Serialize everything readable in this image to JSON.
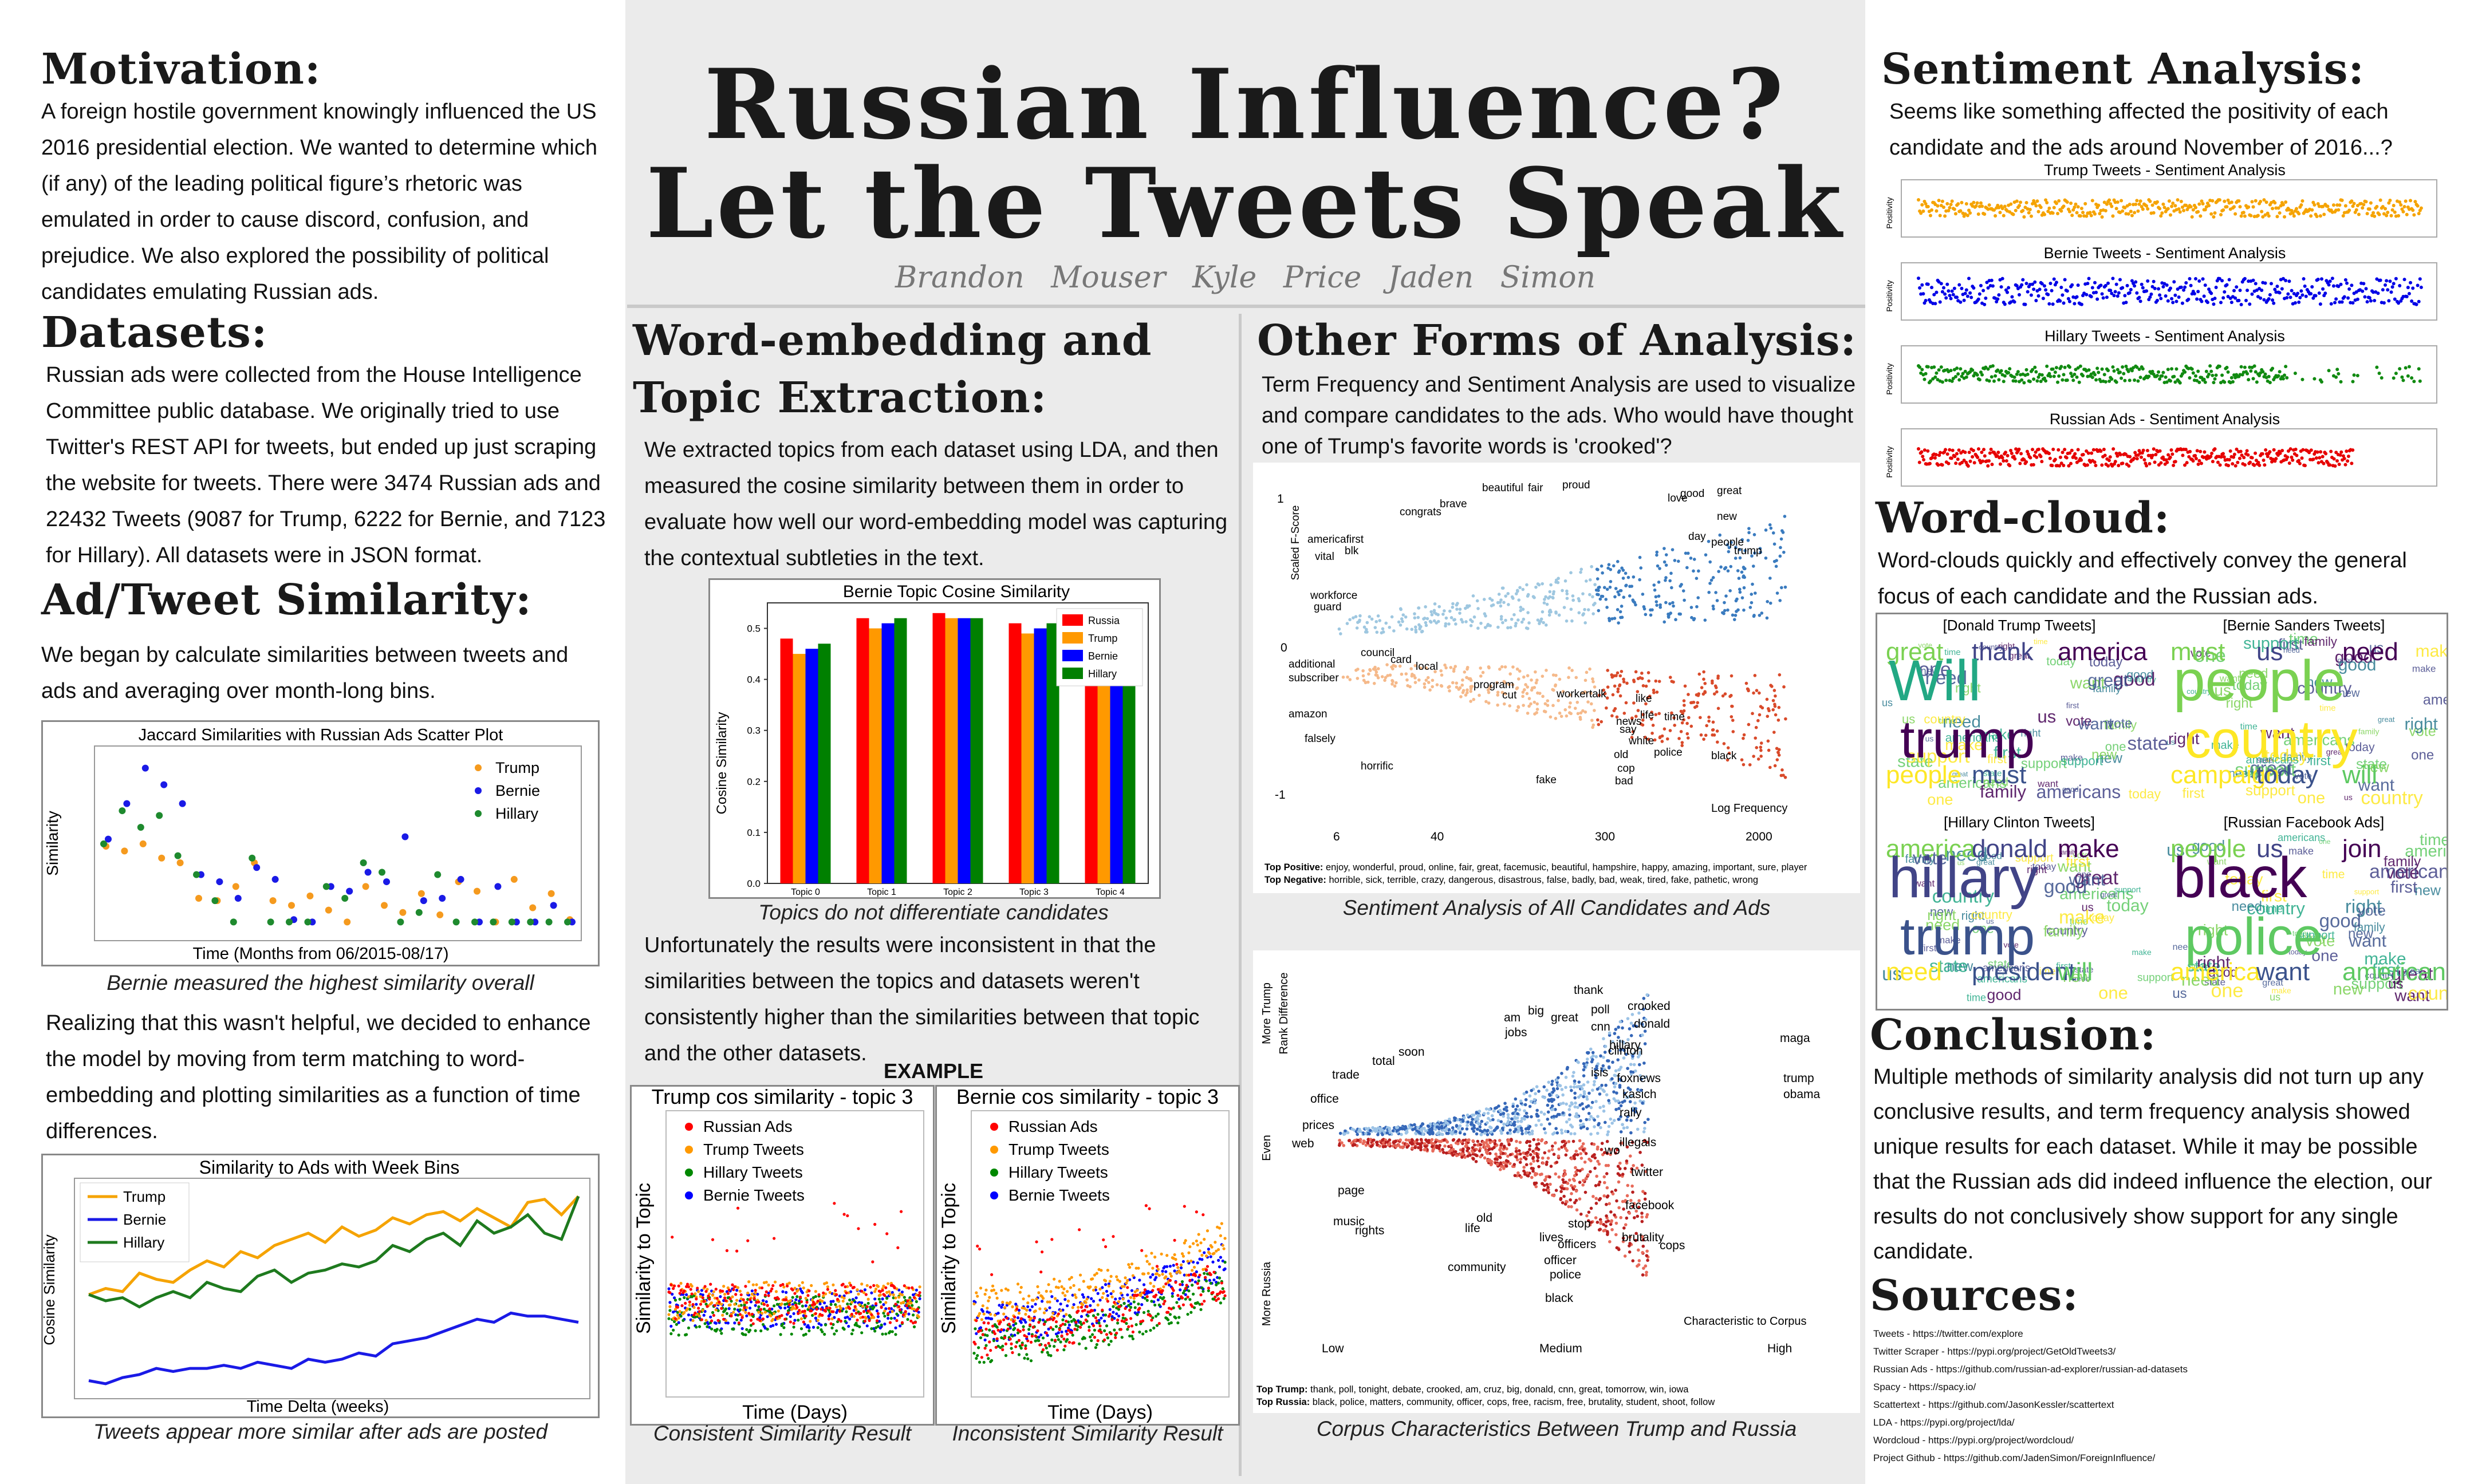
{
  "title_line1": "Russian Influence?",
  "title_line2": "Let the Tweets Speak",
  "authors": "Brandon Mouser Kyle Price Jaden Simon",
  "motivation": {
    "heading": "Motivation:",
    "text": "A foreign hostile government knowingly influenced the US 2016 presidential election. We wanted to determine which (if any) of the leading political figure’s rhetoric was emulated in order to cause discord, confusion, and prejudice. We also explored the possibility of political candidates emulating Russian ads."
  },
  "datasets": {
    "heading": "Datasets:",
    "text": "Russian ads were collected from the House Intelligence Committee public database. We originally tried to use Twitter's REST API for tweets, but ended up just scraping the website for tweets. There were 3474 Russian ads and 22432 Tweets (9087 for Trump, 6222 for Bernie, and 7123 for Hillary). All datasets were in JSON format."
  },
  "similarity": {
    "heading": "Ad/Tweet Similarity:",
    "text1": "We began by calculate similarities between tweets and ads and averaging over month-long bins.",
    "fig1_title": "Jaccard Similarities with Russian Ads Scatter Plot",
    "fig1_ylabel": "Similarity",
    "fig1_xlabel": "Time (Months from 06/2015-08/17)",
    "fig1_caption": "Bernie measured the highest similarity overall",
    "text2": "Realizing that this wasn't helpful, we decided to enhance the model by moving from term matching to word-embedding and plotting similarities as a function of time differences.",
    "fig2_title": "Similarity to Ads with Week Bins",
    "fig2_ylabel": "Cosine Similarity",
    "fig2_xlabel": "Time Delta (weeks)",
    "fig2_caption": "Tweets appear more similar after ads are posted"
  },
  "word_embedding": {
    "heading_line1": "Word-embedding and",
    "heading_line2": "Topic Extraction:",
    "text1": "We extracted topics from each dataset using LDA, and then measured the cosine similarity between them in order to evaluate how well our word-embedding model was capturing the contextual subtleties in the text.",
    "caption1": "Topics do not differentiate candidates",
    "text2": "Unfortunately the results were inconsistent in that the similarities between the topics and datasets weren't consistently higher than the similarities between that topic and the other datasets.",
    "example_label": "EXAMPLE",
    "left_title": "Trump cos similarity - topic 3",
    "right_title": "Bernie cos similarity - topic 3",
    "ylabel": "Similarity to Topic",
    "xlabel": "Time (Days)",
    "legend": [
      "Russian Ads",
      "Trump Tweets",
      "Hillary Tweets",
      "Bernie Tweets"
    ],
    "caption_left": "Consistent Similarity Result",
    "caption_right": "Inconsistent Similarity Result"
  },
  "other_analysis": {
    "heading": "Other Forms of Analysis:",
    "text": "Term Frequency and Sentiment Analysis are used to visualize and compare candidates to the ads. Who would have thought one of Trump's favorite words is 'crooked'?",
    "sent_ylabel": "Scaled F-Score",
    "sent_xlabel": "Log Frequency",
    "sent_yticks": [
      "1",
      "0",
      "-1"
    ],
    "sent_xticks": [
      "6",
      "40",
      "300",
      "2000"
    ],
    "sent_words_pos": [
      "beautiful",
      "fair",
      "proud",
      "great",
      "good",
      "love",
      "brave",
      "congrats",
      "new",
      "day",
      "people",
      "trump",
      "americafirst",
      "blk",
      "vital",
      "workforce",
      "guard"
    ],
    "sent_words_neg": [
      "additional",
      "subscriber",
      "council",
      "card",
      "local",
      "program",
      "cut",
      "workertalk",
      "like",
      "life",
      "time",
      "news",
      "amazon",
      "falsely",
      "say",
      "white",
      "police",
      "black",
      "old",
      "cop",
      "bad",
      "horrific",
      "fake"
    ],
    "sent_top_pos_label": "Top Positive:",
    "sent_top_pos": "enjoy, wonderful, proud, online, fair, great, facemusic, beautiful, hampshire, happy, amazing, important, sure, player",
    "sent_top_neg_label": "Top Negative:",
    "sent_top_neg": "horrible, sick, terrible, crazy, dangerous, disastrous, false, badly, bad, weak, tired, fake, pathetic, wrong",
    "sent_caption": "Sentiment Analysis of All Candidates and Ads",
    "corpus_ylabels": [
      "More Trump",
      "Rank Difference",
      "Even",
      "More Russia"
    ],
    "corpus_xticks": [
      "Low",
      "Medium",
      "High"
    ],
    "corpus_xlabel": "Characteristic to Corpus",
    "corpus_words_top": [
      "thank",
      "big",
      "poll",
      "crooked",
      "donald",
      "great",
      "am",
      "jobs",
      "cnn",
      "maga",
      "hillary",
      "soon",
      "clinton",
      "total",
      "trade",
      "isis",
      "foxnews",
      "trump",
      "obama",
      "kasich",
      "office",
      "rally",
      "prices",
      "web"
    ],
    "corpus_words_bottom": [
      "illegals",
      "wo",
      "twitter",
      "page",
      "facebook",
      "music",
      "old",
      "stop",
      "brutality",
      "rights",
      "life",
      "lives",
      "officers",
      "cops",
      "officer",
      "community",
      "police",
      "black"
    ],
    "corpus_top_trump_label": "Top Trump:",
    "corpus_top_trump": "thank, poll, tonight, debate, crooked, am, cruz, big, donald, cnn, great, tomorrow, win, iowa",
    "corpus_top_russia_label": "Top Russia:",
    "corpus_top_russia": "black, police, matters, community, officer, cops, free, racism, free, brutality, student, shoot, follow",
    "corpus_caption": "Corpus Characteristics Between Trump and Russia"
  },
  "sentiment": {
    "heading": "Sentiment Analysis:",
    "text": "Seems like something affected the positivity of each candidate and the ads around November of 2016...?",
    "ylabel": "Positivity",
    "panels": [
      {
        "title": "Trump Tweets - Sentiment Analysis",
        "color": "#f5a300"
      },
      {
        "title": "Bernie Tweets - Sentiment Analysis",
        "color": "#0000e6"
      },
      {
        "title": "Hillary Tweets - Sentiment Analysis",
        "color": "#118a11"
      },
      {
        "title": "Russian Ads - Sentiment Analysis",
        "color": "#e60000"
      }
    ]
  },
  "wordcloud": {
    "heading": "Word-cloud:",
    "text": "Word-clouds quickly and effectively  convey the general focus of each candidate and the Russian ads.",
    "panels": [
      {
        "title": "[Donald Trump Tweets]",
        "big": [
          "Will",
          "trump"
        ],
        "mid": [
          "great",
          "thank",
          "america",
          "people",
          "must"
        ]
      },
      {
        "title": "[Bernie Sanders Tweets]",
        "big": [
          "people",
          "country"
        ],
        "mid": [
          "must",
          "us",
          "need",
          "campaign",
          "today",
          "will"
        ]
      },
      {
        "title": "[Hillary Clinton Tweets]",
        "big": [
          "hillary",
          "trump"
        ],
        "mid": [
          "america",
          "donald",
          "make",
          "need",
          "president",
          "will"
        ]
      },
      {
        "title": "[Russian Facebook Ads]",
        "big": [
          "black",
          "police"
        ],
        "mid": [
          "people",
          "us",
          "join",
          "america",
          "want",
          "american"
        ]
      }
    ]
  },
  "conclusion": {
    "heading": "Conclusion:",
    "text": "Multiple methods of similarity analysis did not turn up any conclusive results, and term frequency analysis showed unique results for each dataset. While it may be possible that the Russian ads did indeed influence the election, our results do not conclusively show support for any single candidate."
  },
  "sources": {
    "heading": "Sources:",
    "items": [
      "Tweets - https://twitter.com/explore",
      "Twitter Scraper - https://pypi.org/project/GetOldTweets3/",
      "Russian Ads - https://github.com/russian-ad-explorer/russian-ad-datasets",
      "Spacy - https://spacy.io/",
      "Scattertext - https://github.com/JasonKessler/scattertext",
      "LDA - https://pypi.org/project/lda/",
      "Wordcloud - https://pypi.org/project/wordcloud/",
      "Project Github - https://github.com/JadenSimon/ForeignInfluence/"
    ]
  },
  "chart_data": [
    {
      "type": "scatter",
      "title": "Jaccard Similarities with Russian Ads Scatter Plot",
      "xlabel": "Time (Months from 06/2015-08/17)",
      "ylabel": "Similarity",
      "colors": {
        "Trump": "#f59a1e",
        "Bernie": "#1a1ae6",
        "Hillary": "#1e8a2e"
      },
      "series": [
        {
          "name": "Trump",
          "x": [
            1,
            2,
            3,
            4,
            5,
            6,
            7,
            8,
            9,
            10,
            11,
            12,
            13,
            14,
            15,
            16,
            17,
            18,
            19,
            20,
            21,
            22,
            23,
            24,
            25,
            26
          ],
          "values": [
            0.37,
            0.35,
            0.38,
            0.32,
            0.3,
            0.15,
            0.14,
            0.2,
            0.3,
            0.14,
            0.12,
            0.16,
            0.1,
            0.05,
            0.2,
            0.12,
            0.09,
            0.17,
            0.08,
            0.22,
            0.18,
            0.05,
            0.23,
            0.11,
            0.17,
            0.06
          ]
        },
        {
          "name": "Bernie",
          "x": [
            1,
            2,
            3,
            4,
            5,
            6,
            7,
            8,
            9,
            10,
            11,
            12,
            13,
            14,
            15,
            16,
            17,
            18,
            19,
            20,
            21,
            22,
            23,
            24,
            25,
            26
          ],
          "values": [
            0.4,
            0.55,
            0.7,
            0.63,
            0.55,
            0.25,
            0.22,
            0.15,
            0.28,
            0.23,
            0.06,
            0.05,
            0.2,
            0.18,
            0.26,
            0.22,
            0.41,
            0.14,
            0.15,
            0.23,
            0.05,
            0.2,
            0.05,
            0.05,
            0.12,
            0.05
          ]
        },
        {
          "name": "Hillary",
          "x": [
            1,
            2,
            3,
            4,
            5,
            6,
            7,
            8,
            9,
            10,
            11,
            12,
            13,
            14,
            15,
            16,
            17,
            18,
            19,
            20,
            21,
            22,
            23,
            24,
            25,
            26
          ],
          "values": [
            0.38,
            0.52,
            0.45,
            0.5,
            0.33,
            0.25,
            0.14,
            0.05,
            0.32,
            0.05,
            0.05,
            0.05,
            0.2,
            0.15,
            0.3,
            0.26,
            0.05,
            0.09,
            0.25,
            0.05,
            0.05,
            0.05,
            0.05,
            0.05,
            0.05,
            0.05
          ]
        }
      ]
    },
    {
      "type": "line",
      "title": "Similarity to Ads with Week Bins",
      "xlabel": "Time Delta (weeks)",
      "ylabel": "Cosine Similarity",
      "colors": {
        "Trump": "#f5a300",
        "Bernie": "#1a1ae6",
        "Hillary": "#1e7a1e"
      },
      "series": [
        {
          "name": "Trump",
          "values": [
            0.62,
            0.63,
            0.625,
            0.655,
            0.645,
            0.64,
            0.66,
            0.675,
            0.665,
            0.69,
            0.68,
            0.7,
            0.71,
            0.72,
            0.705,
            0.73,
            0.715,
            0.725,
            0.745,
            0.735,
            0.75,
            0.755,
            0.74,
            0.76,
            0.745,
            0.73,
            0.77,
            0.775,
            0.75,
            0.78
          ]
        },
        {
          "name": "Bernie",
          "values": [
            0.48,
            0.475,
            0.485,
            0.49,
            0.5,
            0.495,
            0.5,
            0.5,
            0.505,
            0.5,
            0.51,
            0.505,
            0.5,
            0.515,
            0.51,
            0.515,
            0.525,
            0.52,
            0.54,
            0.545,
            0.55,
            0.56,
            0.57,
            0.58,
            0.575,
            0.59,
            0.585,
            0.585,
            0.58,
            0.575
          ]
        },
        {
          "name": "Hillary",
          "values": [
            0.62,
            0.61,
            0.615,
            0.6,
            0.615,
            0.625,
            0.615,
            0.64,
            0.63,
            0.625,
            0.65,
            0.66,
            0.64,
            0.655,
            0.66,
            0.67,
            0.665,
            0.675,
            0.7,
            0.69,
            0.71,
            0.72,
            0.7,
            0.74,
            0.72,
            0.73,
            0.75,
            0.72,
            0.71,
            0.78
          ]
        }
      ]
    },
    {
      "type": "bar",
      "title": "Bernie Topic Cosine Similarity",
      "ylabel": "Cosine Similarity",
      "categories": [
        "Topic 0",
        "Topic 1",
        "Topic 2",
        "Topic 3",
        "Topic 4"
      ],
      "ylim": [
        0,
        0.55
      ],
      "yticks": [
        "0.0",
        "0.1",
        "0.2",
        "0.3",
        "0.4",
        "0.5"
      ],
      "colors": {
        "Russia": "#ff0000",
        "Trump": "#ff9900",
        "Bernie": "#0000ff",
        "Hillary": "#008000"
      },
      "series": [
        {
          "name": "Russia",
          "values": [
            0.48,
            0.52,
            0.53,
            0.51,
            0.53
          ]
        },
        {
          "name": "Trump",
          "values": [
            0.45,
            0.5,
            0.52,
            0.49,
            0.51
          ]
        },
        {
          "name": "Bernie",
          "values": [
            0.46,
            0.51,
            0.52,
            0.5,
            0.52
          ]
        },
        {
          "name": "Hillary",
          "values": [
            0.47,
            0.52,
            0.52,
            0.51,
            0.52
          ]
        }
      ]
    }
  ]
}
